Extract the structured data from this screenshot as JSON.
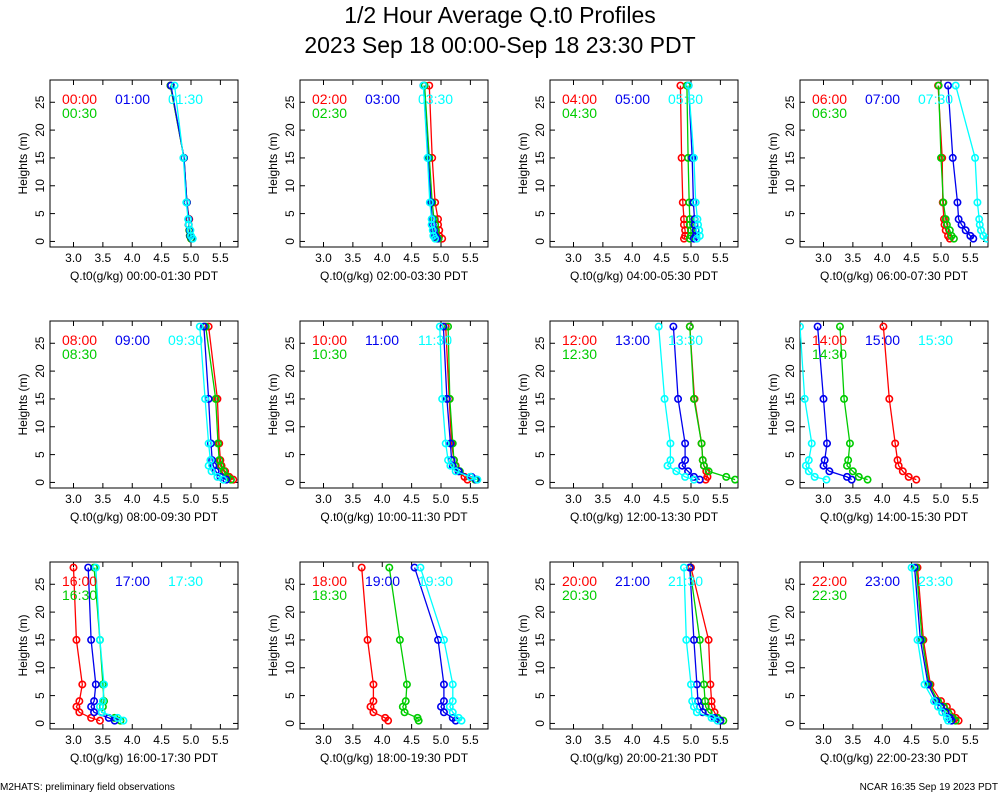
{
  "header": {
    "title": "1/2 Hour Average Q.t0 Profiles",
    "subtitle": "2023 Sep 18 00:00-Sep 18 23:30 PDT"
  },
  "footer": {
    "left": "M2HATS: preliminary field observations",
    "right": "NCAR 16:35 Sep 19 2023 PDT"
  },
  "colors": {
    "series_1": "#ff0000",
    "series_2": "#00cc00",
    "series_3": "#0000ee",
    "series_4": "#00ffff"
  },
  "chart_data": [
    {
      "type": "line",
      "xlabel": "Q.t0(g/kg) 00:00-01:30 PDT",
      "ylabel": "Heights (m)",
      "xlim": [
        2.6,
        5.8
      ],
      "ylim": [
        -1,
        29
      ],
      "xticks": [
        "3.0",
        "3.5",
        "4.0",
        "4.5",
        "5.0",
        "5.5"
      ],
      "yticks": [
        "0",
        "5",
        "10",
        "15",
        "20",
        "25"
      ],
      "heights": [
        0.5,
        1,
        2,
        3,
        4,
        7,
        15,
        28
      ],
      "series": [
        {
          "name": "00:00",
          "color": "#ff0000",
          "values": [
            5.0,
            4.98,
            4.98,
            4.96,
            4.97,
            4.93,
            4.88,
            4.65
          ]
        },
        {
          "name": "00:30",
          "color": "#00cc00",
          "values": [
            5.0,
            4.98,
            4.97,
            4.96,
            4.96,
            4.93,
            4.88,
            4.65
          ]
        },
        {
          "name": "01:00",
          "color": "#0000ee",
          "values": [
            5.02,
            4.99,
            4.98,
            4.96,
            4.96,
            4.93,
            4.88,
            4.66
          ]
        },
        {
          "name": "01:30",
          "color": "#00ffff",
          "values": [
            5.03,
            5.0,
            4.99,
            4.96,
            4.95,
            4.92,
            4.87,
            4.72
          ]
        }
      ]
    },
    {
      "type": "line",
      "xlabel": "Q.t0(g/kg) 02:00-03:30 PDT",
      "ylabel": "Heights (m)",
      "xlim": [
        2.6,
        5.8
      ],
      "ylim": [
        -1,
        29
      ],
      "xticks": [
        "3.0",
        "3.5",
        "4.0",
        "4.5",
        "5.0",
        "5.5"
      ],
      "yticks": [
        "0",
        "5",
        "10",
        "15",
        "20",
        "25"
      ],
      "heights": [
        0.5,
        1,
        2,
        3,
        4,
        7,
        15,
        28
      ],
      "series": [
        {
          "name": "02:00",
          "color": "#ff0000",
          "values": [
            5.02,
            4.97,
            4.97,
            4.95,
            4.95,
            4.9,
            4.85,
            4.8
          ]
        },
        {
          "name": "02:30",
          "color": "#00cc00",
          "values": [
            4.96,
            4.92,
            4.91,
            4.9,
            4.88,
            4.85,
            4.8,
            4.72
          ]
        },
        {
          "name": "03:00",
          "color": "#0000ee",
          "values": [
            4.93,
            4.9,
            4.88,
            4.86,
            4.85,
            4.83,
            4.78,
            4.7
          ]
        },
        {
          "name": "03:30",
          "color": "#00ffff",
          "values": [
            4.9,
            4.87,
            4.86,
            4.84,
            4.84,
            4.81,
            4.77,
            4.7
          ]
        }
      ]
    },
    {
      "type": "line",
      "xlabel": "Q.t0(g/kg) 04:00-05:30 PDT",
      "ylabel": "Heights (m)",
      "xlim": [
        2.6,
        5.8
      ],
      "ylim": [
        -1,
        29
      ],
      "xticks": [
        "3.0",
        "3.5",
        "4.0",
        "4.5",
        "5.0",
        "5.5"
      ],
      "yticks": [
        "0",
        "5",
        "10",
        "15",
        "20",
        "25"
      ],
      "heights": [
        0.5,
        1,
        2,
        3,
        4,
        7,
        15,
        28
      ],
      "series": [
        {
          "name": "04:00",
          "color": "#ff0000",
          "values": [
            4.88,
            4.9,
            4.9,
            4.88,
            4.88,
            4.86,
            4.84,
            4.82
          ]
        },
        {
          "name": "04:30",
          "color": "#00cc00",
          "values": [
            4.98,
            5.0,
            5.0,
            4.98,
            4.98,
            4.97,
            4.95,
            4.93
          ]
        },
        {
          "name": "05:00",
          "color": "#0000ee",
          "values": [
            5.05,
            5.08,
            5.08,
            5.06,
            5.06,
            5.04,
            5.02,
            4.96
          ]
        },
        {
          "name": "05:30",
          "color": "#00ffff",
          "values": [
            5.1,
            5.15,
            5.14,
            5.12,
            5.11,
            5.08,
            5.05,
            4.96
          ]
        }
      ]
    },
    {
      "type": "line",
      "xlabel": "Q.t0(g/kg) 06:00-07:30 PDT",
      "ylabel": "Heights (m)",
      "xlim": [
        2.6,
        5.8
      ],
      "ylim": [
        -1,
        29
      ],
      "xticks": [
        "3.0",
        "3.5",
        "4.0",
        "4.5",
        "5.0",
        "5.5"
      ],
      "yticks": [
        "0",
        "5",
        "10",
        "15",
        "20",
        "25"
      ],
      "heights": [
        0.5,
        1,
        2,
        3,
        4,
        7,
        15,
        28
      ],
      "series": [
        {
          "name": "06:00",
          "color": "#ff0000",
          "values": [
            5.15,
            5.12,
            5.08,
            5.06,
            5.05,
            5.03,
            5.02,
            4.95
          ]
        },
        {
          "name": "06:30",
          "color": "#00cc00",
          "values": [
            5.22,
            5.18,
            5.15,
            5.1,
            5.08,
            5.04,
            5.0,
            4.96
          ]
        },
        {
          "name": "07:00",
          "color": "#0000ee",
          "values": [
            5.55,
            5.5,
            5.42,
            5.35,
            5.3,
            5.28,
            5.2,
            5.12
          ]
        },
        {
          "name": "07:30",
          "color": "#00ffff",
          "values": [
            5.78,
            5.72,
            5.68,
            5.66,
            5.65,
            5.62,
            5.58,
            5.25
          ]
        }
      ]
    },
    {
      "type": "line",
      "xlabel": "Q.t0(g/kg) 08:00-09:30 PDT",
      "ylabel": "Heights (m)",
      "xlim": [
        2.6,
        5.8
      ],
      "ylim": [
        -1,
        29
      ],
      "xticks": [
        "3.0",
        "3.5",
        "4.0",
        "4.5",
        "5.0",
        "5.5"
      ],
      "yticks": [
        "0",
        "5",
        "10",
        "15",
        "20",
        "25"
      ],
      "heights": [
        0.5,
        1,
        2,
        3,
        4,
        7,
        15,
        28
      ],
      "series": [
        {
          "name": "08:00",
          "color": "#ff0000",
          "values": [
            5.72,
            5.65,
            5.58,
            5.52,
            5.5,
            5.48,
            5.45,
            5.3
          ]
        },
        {
          "name": "08:30",
          "color": "#00cc00",
          "values": [
            5.68,
            5.62,
            5.56,
            5.5,
            5.48,
            5.46,
            5.42,
            5.25
          ]
        },
        {
          "name": "09:00",
          "color": "#0000ee",
          "values": [
            5.6,
            5.5,
            5.42,
            5.38,
            5.36,
            5.34,
            5.3,
            5.22
          ]
        },
        {
          "name": "09:30",
          "color": "#00ffff",
          "values": [
            5.55,
            5.45,
            5.35,
            5.3,
            5.33,
            5.3,
            5.24,
            5.15
          ]
        }
      ]
    },
    {
      "type": "line",
      "xlabel": "Q.t0(g/kg) 10:00-11:30 PDT",
      "ylabel": "Heights (m)",
      "xlim": [
        2.6,
        5.8
      ],
      "ylim": [
        -1,
        29
      ],
      "xticks": [
        "3.0",
        "3.5",
        "4.0",
        "4.5",
        "5.0",
        "5.5"
      ],
      "yticks": [
        "0",
        "5",
        "10",
        "15",
        "20",
        "25"
      ],
      "heights": [
        0.5,
        1,
        2,
        3,
        4,
        7,
        15,
        28
      ],
      "series": [
        {
          "name": "10:00",
          "color": "#ff0000",
          "values": [
            5.45,
            5.4,
            5.3,
            5.25,
            5.22,
            5.18,
            5.14,
            5.08
          ]
        },
        {
          "name": "10:30",
          "color": "#00cc00",
          "values": [
            5.58,
            5.5,
            5.32,
            5.24,
            5.22,
            5.2,
            5.15,
            5.12
          ]
        },
        {
          "name": "11:00",
          "color": "#0000ee",
          "values": [
            5.6,
            5.52,
            5.3,
            5.2,
            5.18,
            5.16,
            5.1,
            5.04
          ]
        },
        {
          "name": "11:30",
          "color": "#00ffff",
          "values": [
            5.62,
            5.5,
            5.25,
            5.16,
            5.12,
            5.08,
            5.02,
            4.98
          ]
        }
      ]
    },
    {
      "type": "line",
      "xlabel": "Q.t0(g/kg) 12:00-13:30 PDT",
      "ylabel": "Heights (m)",
      "xlim": [
        2.6,
        5.8
      ],
      "ylim": [
        -1,
        29
      ],
      "xticks": [
        "3.0",
        "3.5",
        "4.0",
        "4.5",
        "5.0",
        "5.5"
      ],
      "yticks": [
        "0",
        "5",
        "10",
        "15",
        "20",
        "25"
      ],
      "heights": [
        0.5,
        1,
        2,
        3,
        4,
        7,
        15,
        28
      ],
      "series": [
        {
          "name": "12:00",
          "color": "#ff0000",
          "values": [
            5.25,
            5.28,
            5.26,
            5.22,
            5.2,
            5.18,
            5.06,
            4.98
          ]
        },
        {
          "name": "12:30",
          "color": "#00cc00",
          "values": [
            5.75,
            5.6,
            5.3,
            5.22,
            5.2,
            5.18,
            5.05,
            4.98
          ]
        },
        {
          "name": "13:00",
          "color": "#0000ee",
          "values": [
            5.15,
            5.05,
            4.95,
            4.85,
            4.9,
            4.9,
            4.78,
            4.7
          ]
        },
        {
          "name": "13:30",
          "color": "#00ffff",
          "values": [
            5.05,
            4.9,
            4.75,
            4.6,
            4.65,
            4.65,
            4.55,
            4.45
          ]
        }
      ]
    },
    {
      "type": "line",
      "xlabel": "Q.t0(g/kg) 14:00-15:30 PDT",
      "ylabel": "Heights (m)",
      "xlim": [
        2.6,
        5.8
      ],
      "ylim": [
        -1,
        29
      ],
      "xticks": [
        "3.0",
        "3.5",
        "4.0",
        "4.5",
        "5.0",
        "5.5"
      ],
      "yticks": [
        "0",
        "5",
        "10",
        "15",
        "20",
        "25"
      ],
      "heights": [
        0.5,
        1,
        2,
        3,
        4,
        7,
        15,
        28
      ],
      "series": [
        {
          "name": "14:00",
          "color": "#ff0000",
          "values": [
            4.58,
            4.45,
            4.35,
            4.28,
            4.26,
            4.22,
            4.12,
            4.02
          ]
        },
        {
          "name": "14:30",
          "color": "#00cc00",
          "values": [
            3.75,
            3.6,
            3.5,
            3.4,
            3.42,
            3.45,
            3.35,
            3.28
          ]
        },
        {
          "name": "15:00",
          "color": "#0000ee",
          "values": [
            3.48,
            3.4,
            3.1,
            3.0,
            3.02,
            3.06,
            3.0,
            2.9
          ]
        },
        {
          "name": "15:30",
          "color": "#00ffff",
          "values": [
            3.05,
            2.85,
            2.75,
            2.7,
            2.75,
            2.8,
            2.68,
            2.6
          ]
        }
      ]
    },
    {
      "type": "line",
      "xlabel": "Q.t0(g/kg) 16:00-17:30 PDT",
      "ylabel": "Heights (m)",
      "xlim": [
        2.6,
        5.8
      ],
      "ylim": [
        -1,
        29
      ],
      "xticks": [
        "3.0",
        "3.5",
        "4.0",
        "4.5",
        "5.0",
        "5.5"
      ],
      "yticks": [
        "0",
        "5",
        "10",
        "15",
        "20",
        "25"
      ],
      "heights": [
        0.5,
        1,
        2,
        3,
        4,
        7,
        15,
        28
      ],
      "series": [
        {
          "name": "16:00",
          "color": "#ff0000",
          "values": [
            3.45,
            3.3,
            3.1,
            3.05,
            3.1,
            3.15,
            3.05,
            3.0
          ]
        },
        {
          "name": "16:30",
          "color": "#00cc00",
          "values": [
            3.8,
            3.7,
            3.48,
            3.5,
            3.52,
            3.5,
            3.45,
            3.35
          ]
        },
        {
          "name": "17:00",
          "color": "#0000ee",
          "values": [
            3.7,
            3.6,
            3.35,
            3.3,
            3.35,
            3.38,
            3.3,
            3.25
          ]
        },
        {
          "name": "17:30",
          "color": "#00ffff",
          "values": [
            3.85,
            3.75,
            3.48,
            3.45,
            3.5,
            3.52,
            3.45,
            3.38
          ]
        }
      ]
    },
    {
      "type": "line",
      "xlabel": "Q.t0(g/kg) 18:00-19:30 PDT",
      "ylabel": "Heights (m)",
      "xlim": [
        2.6,
        5.8
      ],
      "ylim": [
        -1,
        29
      ],
      "xticks": [
        "3.0",
        "3.5",
        "4.0",
        "4.5",
        "5.0",
        "5.5"
      ],
      "yticks": [
        "0",
        "5",
        "10",
        "15",
        "20",
        "25"
      ],
      "heights": [
        0.5,
        1,
        2,
        3,
        4,
        7,
        15,
        28
      ],
      "series": [
        {
          "name": "18:00",
          "color": "#ff0000",
          "values": [
            4.1,
            4.05,
            3.85,
            3.8,
            3.85,
            3.85,
            3.75,
            3.65
          ]
        },
        {
          "name": "18:30",
          "color": "#00cc00",
          "values": [
            4.62,
            4.6,
            4.38,
            4.35,
            4.4,
            4.42,
            4.3,
            4.12
          ]
        },
        {
          "name": "19:00",
          "color": "#0000ee",
          "values": [
            5.25,
            5.2,
            5.05,
            5.0,
            5.05,
            5.05,
            4.95,
            4.55
          ]
        },
        {
          "name": "19:30",
          "color": "#00ffff",
          "values": [
            5.35,
            5.3,
            5.2,
            5.15,
            5.2,
            5.2,
            5.05,
            4.65
          ]
        }
      ]
    },
    {
      "type": "line",
      "xlabel": "Q.t0(g/kg) 20:00-21:30 PDT",
      "ylabel": "Heights (m)",
      "xlim": [
        2.6,
        5.8
      ],
      "ylim": [
        -1,
        29
      ],
      "xticks": [
        "3.0",
        "3.5",
        "4.0",
        "4.5",
        "5.0",
        "5.5"
      ],
      "yticks": [
        "0",
        "5",
        "10",
        "15",
        "20",
        "25"
      ],
      "heights": [
        0.5,
        1,
        2,
        3,
        4,
        7,
        15,
        28
      ],
      "series": [
        {
          "name": "20:00",
          "color": "#ff0000",
          "values": [
            5.5,
            5.45,
            5.4,
            5.35,
            5.35,
            5.33,
            5.3,
            5.0
          ]
        },
        {
          "name": "20:30",
          "color": "#00cc00",
          "values": [
            5.55,
            5.45,
            5.3,
            5.25,
            5.24,
            5.22,
            5.15,
            4.98
          ]
        },
        {
          "name": "21:00",
          "color": "#0000ee",
          "values": [
            5.5,
            5.4,
            5.2,
            5.15,
            5.12,
            5.1,
            5.05,
            4.98
          ]
        },
        {
          "name": "21:30",
          "color": "#00ffff",
          "values": [
            5.45,
            5.35,
            5.1,
            5.05,
            5.02,
            5.0,
            4.92,
            4.88
          ]
        }
      ]
    },
    {
      "type": "line",
      "xlabel": "Q.t0(g/kg) 22:00-23:30 PDT",
      "ylabel": "Heights (m)",
      "xlim": [
        2.6,
        5.8
      ],
      "ylim": [
        -1,
        29
      ],
      "xticks": [
        "3.0",
        "3.5",
        "4.0",
        "4.5",
        "5.0",
        "5.5"
      ],
      "yticks": [
        "0",
        "5",
        "10",
        "15",
        "20",
        "25"
      ],
      "heights": [
        0.5,
        1,
        2,
        3,
        4,
        7,
        15,
        28
      ],
      "series": [
        {
          "name": "22:00",
          "color": "#ff0000",
          "values": [
            5.3,
            5.25,
            5.18,
            5.1,
            5.0,
            4.82,
            4.7,
            4.6
          ]
        },
        {
          "name": "22:30",
          "color": "#00cc00",
          "values": [
            5.25,
            5.2,
            5.12,
            5.05,
            4.95,
            4.8,
            4.68,
            4.58
          ]
        },
        {
          "name": "23:00",
          "color": "#0000ee",
          "values": [
            5.18,
            5.15,
            5.08,
            5.0,
            4.92,
            4.78,
            4.65,
            4.55
          ]
        },
        {
          "name": "23:30",
          "color": "#00ffff",
          "values": [
            5.12,
            5.1,
            5.02,
            4.95,
            4.88,
            4.72,
            4.6,
            4.5
          ]
        }
      ]
    }
  ]
}
